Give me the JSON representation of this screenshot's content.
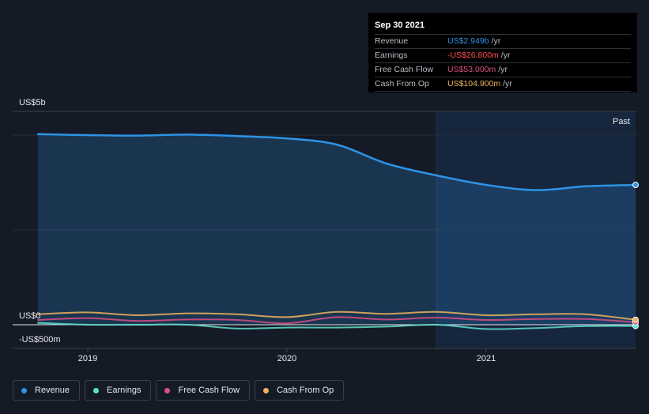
{
  "tooltip": {
    "date": "Sep 30 2021",
    "rows": [
      {
        "label": "Revenue",
        "value": "US$2.949b",
        "unit": "/yr",
        "color": "#2e93e6"
      },
      {
        "label": "Earnings",
        "value": "-US$26.800m",
        "unit": "/yr",
        "color": "#ff4d4d"
      },
      {
        "label": "Free Cash Flow",
        "value": "US$53.000m",
        "unit": "/yr",
        "color": "#d94f84"
      },
      {
        "label": "Cash From Op",
        "value": "US$104.900m",
        "unit": "/yr",
        "color": "#f0b35b"
      }
    ]
  },
  "legend": [
    {
      "label": "Revenue",
      "color": "#2e93e6"
    },
    {
      "label": "Earnings",
      "color": "#5fe0cf"
    },
    {
      "label": "Free Cash Flow",
      "color": "#d94f84"
    },
    {
      "label": "Cash From Op",
      "color": "#f0b35b"
    }
  ],
  "chart_data": {
    "type": "line",
    "title": "",
    "past_label": "Past",
    "y_labels": {
      "top": "US$5b",
      "zero": "US$0",
      "bottom": "-US$500m"
    },
    "ylim": [
      -0.5,
      5.0
    ],
    "y_unit": "US$ billions",
    "xlim": [
      2018.75,
      2021.75
    ],
    "past_start": 2020.75,
    "x_ticks": [
      {
        "value": 2019.0,
        "label": "2019"
      },
      {
        "value": 2020.0,
        "label": "2020"
      },
      {
        "value": 2021.0,
        "label": "2021"
      }
    ],
    "gridlines": [
      0,
      2,
      4
    ],
    "series": [
      {
        "name": "Revenue",
        "color": "#2e93e6",
        "area": true,
        "x": [
          2018.75,
          2019.0,
          2019.25,
          2019.5,
          2019.75,
          2020.0,
          2020.25,
          2020.5,
          2020.75,
          2021.0,
          2021.25,
          2021.5,
          2021.75
        ],
        "values": [
          4.02,
          4.0,
          3.99,
          4.01,
          3.98,
          3.93,
          3.8,
          3.4,
          3.15,
          2.95,
          2.84,
          2.92,
          2.949
        ]
      },
      {
        "name": "Earnings",
        "color": "#5fe0cf",
        "area": false,
        "x": [
          2018.75,
          2019.0,
          2019.25,
          2019.5,
          2019.75,
          2020.0,
          2020.25,
          2020.5,
          2020.75,
          2021.0,
          2021.25,
          2021.5,
          2021.75
        ],
        "values": [
          0.04,
          0.0,
          0.0,
          0.0,
          -0.08,
          -0.06,
          -0.06,
          -0.04,
          0.0,
          -0.09,
          -0.07,
          -0.03,
          -0.0268
        ]
      },
      {
        "name": "Free Cash Flow",
        "color": "#d94f84",
        "area": false,
        "x": [
          2018.75,
          2019.0,
          2019.25,
          2019.5,
          2019.75,
          2020.0,
          2020.25,
          2020.5,
          2020.75,
          2021.0,
          2021.25,
          2021.5,
          2021.75
        ],
        "values": [
          0.1,
          0.14,
          0.08,
          0.11,
          0.1,
          0.03,
          0.16,
          0.11,
          0.15,
          0.1,
          0.12,
          0.12,
          0.053
        ]
      },
      {
        "name": "Cash From Op",
        "color": "#f0b35b",
        "area": false,
        "x": [
          2018.75,
          2019.0,
          2019.25,
          2019.5,
          2019.75,
          2020.0,
          2020.25,
          2020.5,
          2020.75,
          2021.0,
          2021.25,
          2021.5,
          2021.75
        ],
        "values": [
          0.22,
          0.26,
          0.2,
          0.24,
          0.22,
          0.16,
          0.27,
          0.23,
          0.27,
          0.2,
          0.22,
          0.22,
          0.1049
        ]
      }
    ]
  }
}
